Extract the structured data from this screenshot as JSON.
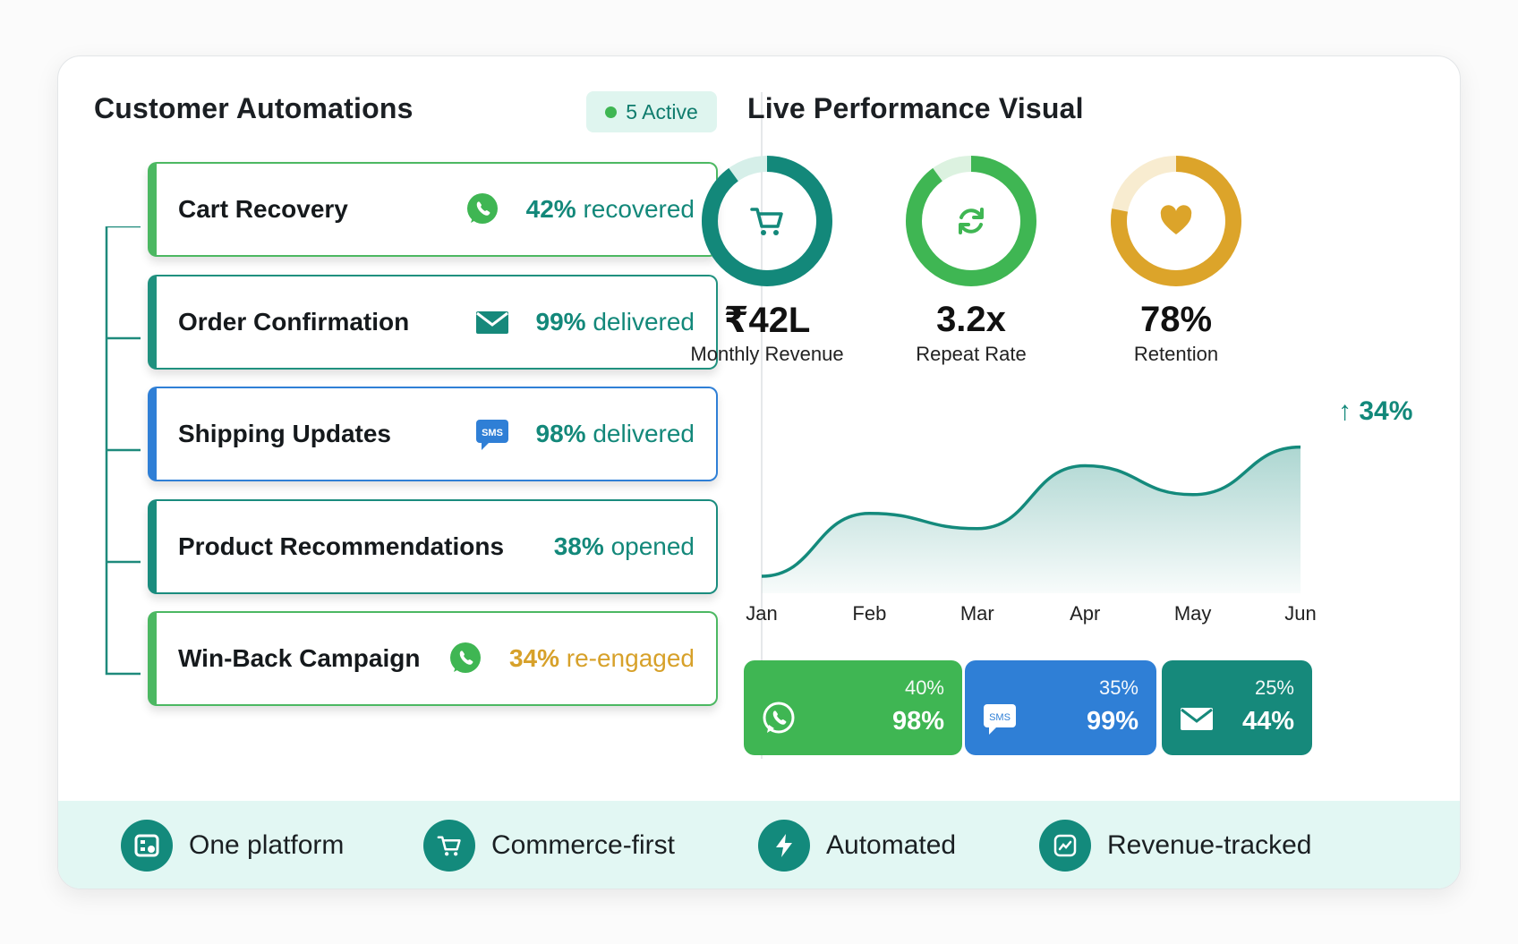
{
  "left": {
    "title": "Customer Automations",
    "badge": "5 Active",
    "automations": [
      {
        "name": "Cart Recovery",
        "icon": "whatsapp-icon",
        "value": "42%",
        "label": "recovered",
        "color": "#13887a",
        "accent": "#4cb862"
      },
      {
        "name": "Order Confirmation",
        "icon": "mail-icon",
        "value": "99%",
        "label": "delivered",
        "color": "#13887a",
        "accent": "#20917f"
      },
      {
        "name": "Shipping Updates",
        "icon": "sms-icon",
        "value": "98%",
        "label": "delivered",
        "color": "#13887a",
        "accent": "#2f7fd6"
      },
      {
        "name": "Product Recommendations",
        "icon": "",
        "value": "38%",
        "label": "opened",
        "color": "#13887a",
        "accent": "#1a8c7e"
      },
      {
        "name": "Win-Back Campaign",
        "icon": "whatsapp-icon",
        "value": "34%",
        "label": "re-engaged",
        "color": "#d7a12a",
        "accent": "#4cb862"
      }
    ]
  },
  "right": {
    "title": "Live Performance Visual",
    "kpis": [
      {
        "value": "₹42L",
        "label": "Monthly Revenue",
        "icon": "cart-icon",
        "color": "#13887a",
        "track": "#d6efe9",
        "fill": 0.9
      },
      {
        "value": "3.2x",
        "label": "Repeat Rate",
        "icon": "refresh-icon",
        "color": "#3fb653",
        "track": "#dcf2e0",
        "fill": 0.9
      },
      {
        "value": "78%",
        "label": "Retention",
        "icon": "heart-icon",
        "color": "#dca42a",
        "track": "#f8ecd0",
        "fill": 0.78
      }
    ],
    "growth": "↑ 34%",
    "chart_data": {
      "type": "area",
      "categories": [
        "Jan",
        "Feb",
        "Mar",
        "Apr",
        "May",
        "Jun"
      ],
      "values": [
        10,
        47,
        38,
        75,
        58,
        86
      ],
      "ylim": [
        0,
        100
      ],
      "title": "",
      "xlabel": "",
      "ylabel": "",
      "grid": false,
      "color": "#148a7c"
    },
    "channels": [
      {
        "icon": "whatsapp-icon",
        "share": "40%",
        "rate": "98%",
        "color": "#3fb653"
      },
      {
        "icon": "sms-icon",
        "share": "35%",
        "rate": "99%",
        "color": "#2f7fd6"
      },
      {
        "icon": "mail-icon",
        "share": "25%",
        "rate": "44%",
        "color": "#16897b"
      }
    ]
  },
  "footer": {
    "features": [
      {
        "label": "One platform",
        "icon": "platform-icon"
      },
      {
        "label": "Commerce-first",
        "icon": "cart-icon"
      },
      {
        "label": "Automated",
        "icon": "bolt-icon"
      },
      {
        "label": "Revenue-tracked",
        "icon": "trend-icon"
      }
    ]
  }
}
